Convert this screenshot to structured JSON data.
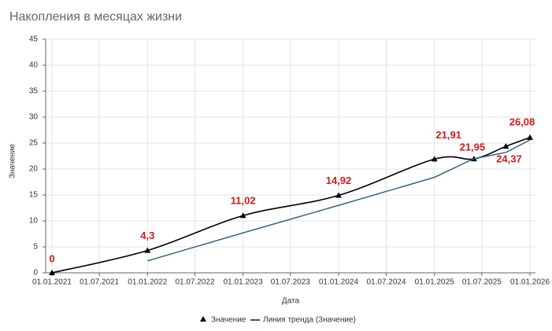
{
  "chart_data": {
    "type": "line",
    "title": "Накопления в месяцах жизни",
    "x_label": "Дата",
    "y_label": "Значение",
    "x": [
      "01.01.2021",
      "01.01.2022",
      "01.01.2023",
      "01.01.2024",
      "01.01.2025",
      "01.06.2025",
      "01.10.2025",
      "01.01.2026"
    ],
    "series": [
      {
        "name": "Значение",
        "color": "#000000",
        "values": [
          0,
          4.3,
          11.02,
          14.92,
          21.91,
          21.95,
          24.37,
          26.08
        ],
        "value_labels": [
          "0",
          "4,3",
          "11,02",
          "14,92",
          "21,91",
          "21,95",
          "24,37",
          "26,08"
        ]
      },
      {
        "name": "Линия тренда (Значение)",
        "color": "#2a5a80",
        "values": [
          null,
          2.3,
          7.7,
          13.0,
          18.4,
          22.0,
          23.2,
          25.6
        ]
      }
    ],
    "xlim": [
      "08.12.2020",
      "22.01.2026"
    ],
    "xticks": [
      "01.01.2021",
      "01.07.2021",
      "01.01.2022",
      "01.07.2022",
      "01.01.2023",
      "01.07.2023",
      "01.01.2024",
      "01.07.2024",
      "01.01.2025",
      "01.07.2025",
      "01.01.2026"
    ],
    "ylim": [
      0,
      45
    ],
    "yticks": [
      0,
      5,
      10,
      15,
      20,
      25,
      30,
      35,
      40,
      45
    ],
    "grid": true
  }
}
